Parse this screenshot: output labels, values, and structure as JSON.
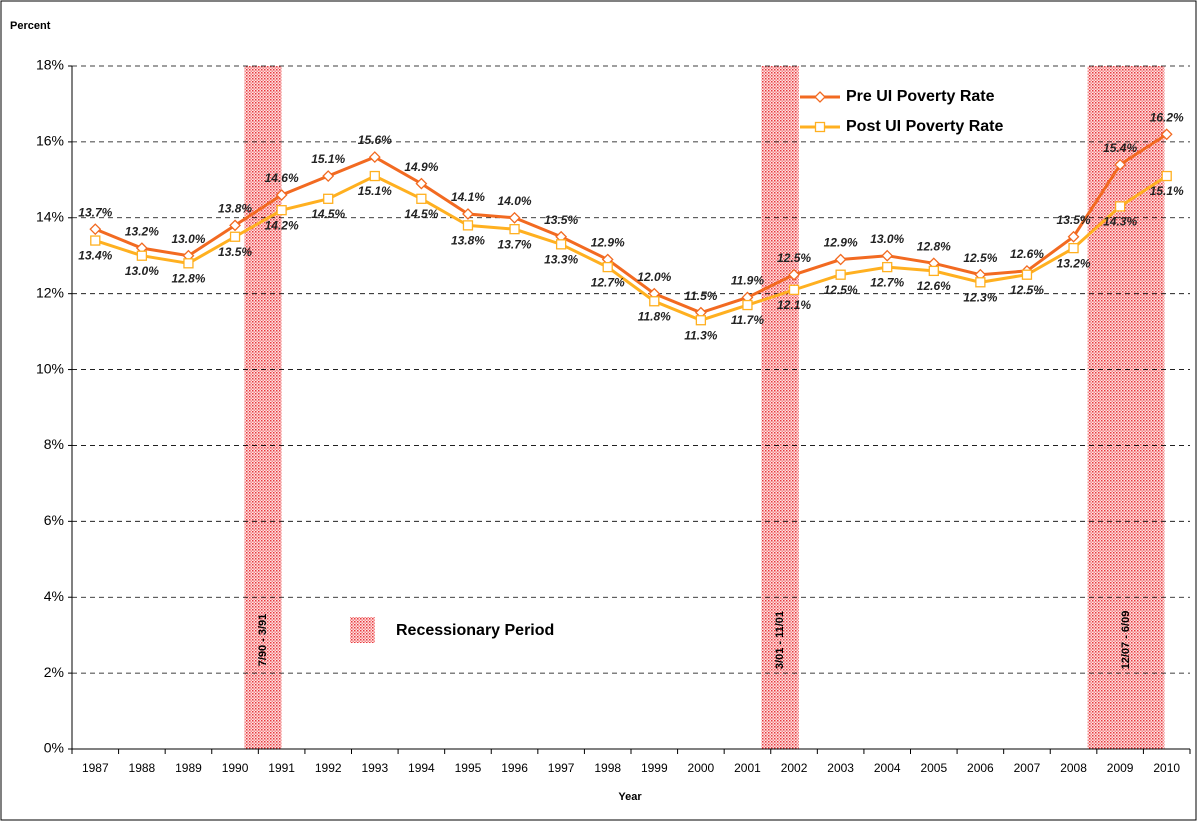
{
  "chart_data": {
    "type": "line",
    "y_axis_label": "Percent",
    "x_axis_label": "Year",
    "categories": [
      "1987",
      "1988",
      "1989",
      "1990",
      "1991",
      "1992",
      "1993",
      "1994",
      "1995",
      "1996",
      "1997",
      "1998",
      "1999",
      "2000",
      "2001",
      "2002",
      "2003",
      "2004",
      "2005",
      "2006",
      "2007",
      "2008",
      "2009",
      "2010"
    ],
    "series": [
      {
        "name": "Pre UI Poverty Rate",
        "color": "#f26a21",
        "marker": "diamond",
        "values": [
          13.7,
          13.2,
          13.0,
          13.8,
          14.6,
          15.1,
          15.6,
          14.9,
          14.1,
          14.0,
          13.5,
          12.9,
          12.0,
          11.5,
          11.9,
          12.5,
          12.9,
          13.0,
          12.8,
          12.5,
          12.6,
          13.5,
          15.4,
          16.2
        ],
        "value_labels": [
          "13.7%",
          "13.2%",
          "13.0%",
          "13.8%",
          "14.6%",
          "15.1%",
          "15.6%",
          "14.9%",
          "14.1%",
          "14.0%",
          "13.5%",
          "12.9%",
          "12.0%",
          "11.5%",
          "11.9%",
          "12.5%",
          "12.9%",
          "13.0%",
          "12.8%",
          "12.5%",
          "12.6%",
          "13.5%",
          "15.4%",
          "16.2%"
        ]
      },
      {
        "name": "Post UI Poverty Rate",
        "color": "#ffb020",
        "marker": "square",
        "values": [
          13.4,
          13.0,
          12.8,
          13.5,
          14.2,
          14.5,
          15.1,
          14.5,
          13.8,
          13.7,
          13.3,
          12.7,
          11.8,
          11.3,
          11.7,
          12.1,
          12.5,
          12.7,
          12.6,
          12.3,
          12.5,
          13.2,
          14.3,
          15.1
        ],
        "value_labels": [
          "13.4%",
          "13.0%",
          "12.8%",
          "13.5%",
          "14.2%",
          "14.5%",
          "15.1%",
          "14.5%",
          "13.8%",
          "13.7%",
          "13.3%",
          "12.7%",
          "11.8%",
          "11.3%",
          "11.7%",
          "12.1%",
          "12.5%",
          "12.7%",
          "12.6%",
          "12.3%",
          "12.5%",
          "13.2%",
          "14.3%",
          "15.1%"
        ]
      }
    ],
    "ylim": [
      0,
      18
    ],
    "yticks": [
      {
        "value": 0,
        "label": "0%"
      },
      {
        "value": 2,
        "label": "2%"
      },
      {
        "value": 4,
        "label": "4%"
      },
      {
        "value": 6,
        "label": "6%"
      },
      {
        "value": 8,
        "label": "8%"
      },
      {
        "value": 10,
        "label": "10%"
      },
      {
        "value": 12,
        "label": "12%"
      },
      {
        "value": 14,
        "label": "14%"
      },
      {
        "value": 16,
        "label": "16%"
      },
      {
        "value": 18,
        "label": "18%"
      }
    ],
    "grid": true,
    "legend": "upper right",
    "recession_legend": "Recessionary Period",
    "recessions": [
      {
        "label": "7/90 - 3/91"
      },
      {
        "label": "3/01 - 11/01"
      },
      {
        "label": "12/07 - 6/09"
      }
    ]
  }
}
